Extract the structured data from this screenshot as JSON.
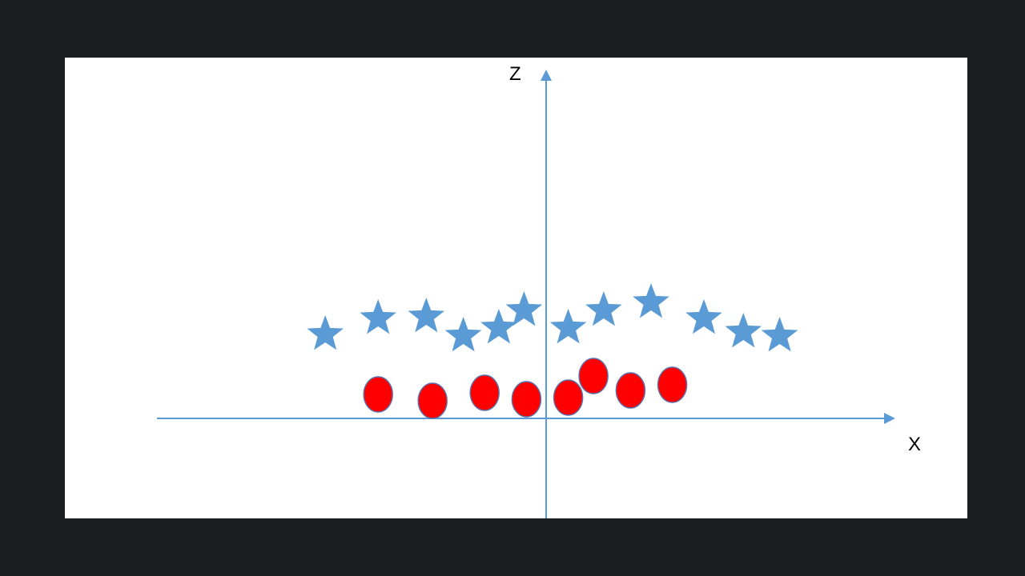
{
  "chart_data": {
    "type": "scatter",
    "title": "",
    "xlabel": "X",
    "ylabel": "Z",
    "grid": false,
    "legend": "none",
    "series": [
      {
        "marker": "star",
        "color": "#5b9bd5",
        "points": [
          {
            "x": -2.8,
            "z": 1.05
          },
          {
            "x": -2.13,
            "z": 1.25
          },
          {
            "x": -1.52,
            "z": 1.27
          },
          {
            "x": -1.05,
            "z": 1.03
          },
          {
            "x": -0.6,
            "z": 1.13
          },
          {
            "x": -0.28,
            "z": 1.35
          },
          {
            "x": 0.28,
            "z": 1.13
          },
          {
            "x": 0.73,
            "z": 1.35
          },
          {
            "x": 1.33,
            "z": 1.45
          },
          {
            "x": 2.0,
            "z": 1.25
          },
          {
            "x": 2.5,
            "z": 1.08
          },
          {
            "x": 2.96,
            "z": 1.03
          }
        ]
      },
      {
        "marker": "circle",
        "color": "#ff0000",
        "edge_color": "#5b6fa8",
        "points": [
          {
            "x": -2.13,
            "z": 0.3
          },
          {
            "x": -1.44,
            "z": 0.22
          },
          {
            "x": -0.78,
            "z": 0.32
          },
          {
            "x": -0.25,
            "z": 0.24
          },
          {
            "x": 0.28,
            "z": 0.26
          },
          {
            "x": 0.6,
            "z": 0.53
          },
          {
            "x": 1.07,
            "z": 0.35
          },
          {
            "x": 1.6,
            "z": 0.42
          }
        ]
      }
    ]
  }
}
